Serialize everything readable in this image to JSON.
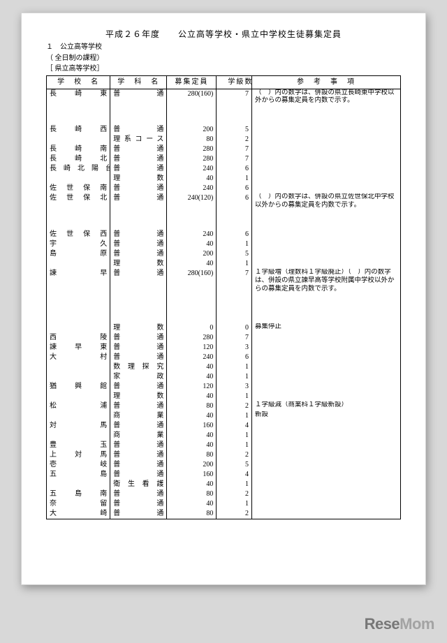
{
  "title": "平成２６年度　　公立高等学校・県立中学校生徒募集定員",
  "subheads": [
    "１　公立高等学校",
    "（ 全日制の課程）",
    "［ 県立高等学校］"
  ],
  "headers": [
    "学　校　名",
    "学　科　名",
    "募集定員　",
    "　学級数　",
    "参　考　事　項"
  ],
  "rows": [
    {
      "school": "長　　崎　　東",
      "dept": "普　　　　通",
      "cap": "280(160)",
      "cls": "7",
      "notes": "（　）内の数字は、併設の県立長崎東中学校以外からの募集定員を内数で示す。"
    },
    {
      "school": "",
      "dept": "",
      "cap": "",
      "cls": "",
      "notes": ""
    },
    {
      "school": "",
      "dept": "",
      "cap": "",
      "cls": "",
      "notes": ""
    },
    {
      "school": "長　　崎　　西",
      "dept": "普　　　　通",
      "cap": "200",
      "cls": "5",
      "notes": ""
    },
    {
      "school": "",
      "dept": "理系コース",
      "cap": "80",
      "cls": "2",
      "notes": ""
    },
    {
      "school": "長　　崎　　南",
      "dept": "普　　　　通",
      "cap": "280",
      "cls": "7",
      "notes": ""
    },
    {
      "school": "長　　崎　　北",
      "dept": "普　　　　通",
      "cap": "280",
      "cls": "7",
      "notes": ""
    },
    {
      "school": "長　崎　北　陽　台",
      "dept": "普　　　　通",
      "cap": "240",
      "cls": "6",
      "notes": ""
    },
    {
      "school": "",
      "dept": "理　　　　数",
      "cap": "40",
      "cls": "1",
      "notes": ""
    },
    {
      "school": "佐　世　保　南",
      "dept": "普　　　　通",
      "cap": "240",
      "cls": "6",
      "notes": ""
    },
    {
      "school": "佐　世　保　北",
      "dept": "普　　　　通",
      "cap": "240(120)",
      "cls": "6",
      "notes": "（　）内の数字は、併設の県立佐世保北中学校以外からの募集定員を内数で示す。"
    },
    {
      "school": "",
      "dept": "",
      "cap": "",
      "cls": "",
      "notes": ""
    },
    {
      "school": "",
      "dept": "",
      "cap": "",
      "cls": "",
      "notes": ""
    },
    {
      "school": "佐　世　保　西",
      "dept": "普　　　　通",
      "cap": "240",
      "cls": "6",
      "notes": ""
    },
    {
      "school": "宇　　　　　久",
      "dept": "普　　　　通",
      "cap": "40",
      "cls": "1",
      "notes": ""
    },
    {
      "school": "島　　　　　原",
      "dept": "普　　　　通",
      "cap": "200",
      "cls": "5",
      "notes": ""
    },
    {
      "school": "",
      "dept": "理　　　　数",
      "cap": "40",
      "cls": "1",
      "notes": ""
    },
    {
      "school": "諫　　　　　早",
      "dept": "普　　　　通",
      "cap": "280(160)",
      "cls": "7",
      "notes": "１学級増（理数科１学級廃止）（　）内の数字は、併設の県立諫早高等学校附属中学校以外からの募集定員を内数で示す。"
    },
    {
      "school": "",
      "dept": "",
      "cap": "",
      "cls": "",
      "notes": ""
    },
    {
      "school": "",
      "dept": "",
      "cap": "",
      "cls": "",
      "notes": ""
    },
    {
      "school": "",
      "dept": "",
      "cap": "",
      "cls": "",
      "notes": ""
    },
    {
      "school": "",
      "dept": "理　　　　数",
      "cap": "0",
      "cls": "0",
      "notes": "募集停止"
    },
    {
      "school": "西　　　　　陵",
      "dept": "普　　　　通",
      "cap": "280",
      "cls": "7",
      "notes": ""
    },
    {
      "school": "諫　　早　　東",
      "dept": "普　　　　通",
      "cap": "120",
      "cls": "3",
      "notes": ""
    },
    {
      "school": "大　　　　　村",
      "dept": "普　　　　通",
      "cap": "240",
      "cls": "6",
      "notes": ""
    },
    {
      "school": "",
      "dept": "数　理　探　究",
      "cap": "40",
      "cls": "1",
      "notes": ""
    },
    {
      "school": "",
      "dept": "家　　　　政",
      "cap": "40",
      "cls": "1",
      "notes": ""
    },
    {
      "school": "猶　　興　　館",
      "dept": "普　　　　通",
      "cap": "120",
      "cls": "3",
      "notes": ""
    },
    {
      "school": "",
      "dept": "理　　　　数",
      "cap": "40",
      "cls": "1",
      "notes": ""
    },
    {
      "school": "松　　　　　浦",
      "dept": "普　　　　通",
      "cap": "80",
      "cls": "2",
      "notes": "１学級減（商業科１学級新設）"
    },
    {
      "school": "",
      "dept": "商　　　　業",
      "cap": "40",
      "cls": "1",
      "notes": "新設"
    },
    {
      "school": "対　　　　　馬",
      "dept": "普　　　　通",
      "cap": "160",
      "cls": "4",
      "notes": ""
    },
    {
      "school": "",
      "dept": "商　　　　業",
      "cap": "40",
      "cls": "1",
      "notes": ""
    },
    {
      "school": "豊　　　　　玉",
      "dept": "普　　　　通",
      "cap": "40",
      "cls": "1",
      "notes": ""
    },
    {
      "school": "上　　対　　馬",
      "dept": "普　　　　通",
      "cap": "80",
      "cls": "2",
      "notes": ""
    },
    {
      "school": "壱　　　　　岐",
      "dept": "普　　　　通",
      "cap": "200",
      "cls": "5",
      "notes": ""
    },
    {
      "school": "五　　　　　島",
      "dept": "普　　　　通",
      "cap": "160",
      "cls": "4",
      "notes": ""
    },
    {
      "school": "",
      "dept": "衛　生　看　護",
      "cap": "40",
      "cls": "1",
      "notes": ""
    },
    {
      "school": "五　　島　　南",
      "dept": "普　　　　通",
      "cap": "80",
      "cls": "2",
      "notes": ""
    },
    {
      "school": "奈　　　　　留",
      "dept": "普　　　　通",
      "cap": "40",
      "cls": "1",
      "notes": ""
    },
    {
      "school": "大　　　　　崎",
      "dept": "普　　　　通",
      "cap": "80",
      "cls": "2",
      "notes": ""
    }
  ],
  "watermark": {
    "text1": "Rese",
    "text2": "Mom"
  }
}
